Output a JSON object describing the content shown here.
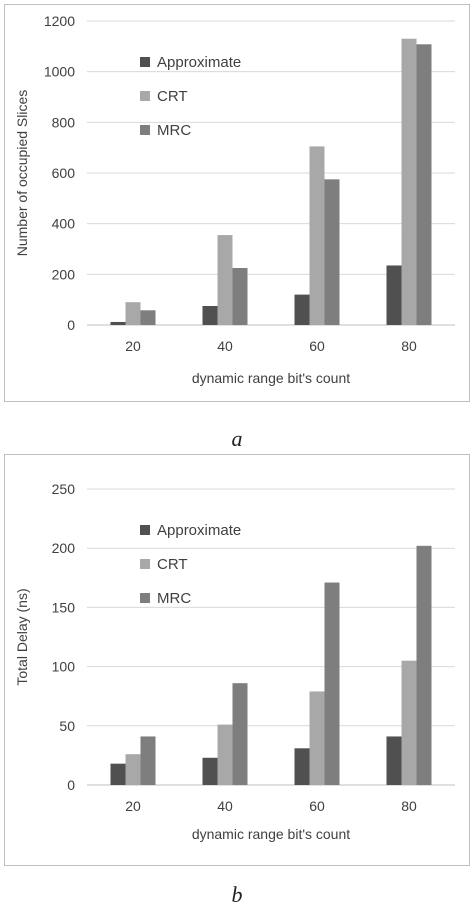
{
  "colors": {
    "approximate": "#505050",
    "crt": "#a8a8a8",
    "mrc": "#7e7e7e",
    "grid": "#d9d9d9",
    "axis": "#bfbfbf"
  },
  "captions": {
    "a": "a",
    "b": "b"
  },
  "chart_data": [
    {
      "type": "bar",
      "categories": [
        "20",
        "40",
        "60",
        "80"
      ],
      "series": [
        {
          "name": "Approximate",
          "values": [
            12,
            75,
            120,
            235
          ]
        },
        {
          "name": "CRT",
          "values": [
            90,
            355,
            705,
            1130
          ]
        },
        {
          "name": "MRC",
          "values": [
            58,
            225,
            575,
            1108
          ]
        }
      ],
      "xlabel": "dynamic range bit's count",
      "ylabel": "Number of occupied Slices",
      "ylim": [
        0,
        1200
      ],
      "yticks": [
        0,
        200,
        400,
        600,
        800,
        1000,
        1200
      ],
      "grid": true,
      "legend": "upper-left"
    },
    {
      "type": "bar",
      "categories": [
        "20",
        "40",
        "60",
        "80"
      ],
      "series": [
        {
          "name": "Approximate",
          "values": [
            18,
            23,
            31,
            41
          ]
        },
        {
          "name": "CRT",
          "values": [
            26,
            51,
            79,
            105
          ]
        },
        {
          "name": "MRC",
          "values": [
            41,
            86,
            171,
            202
          ]
        }
      ],
      "xlabel": "dynamic range bit's count",
      "ylabel": "Total Delay (ns)",
      "ylim": [
        0,
        250
      ],
      "yticks": [
        0,
        50,
        100,
        150,
        200,
        250
      ],
      "grid": true,
      "legend": "upper-left"
    }
  ]
}
